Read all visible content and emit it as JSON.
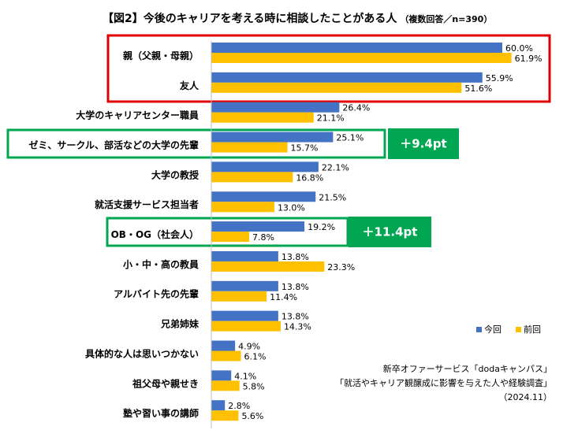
{
  "chart_data": {
    "type": "bar",
    "orientation": "horizontal",
    "title": "【図2】今後のキャリアを考える時に相談したことがある人",
    "subtitle": "（複数回答／n=390）",
    "categories": [
      "親（父親・母親）",
      "友人",
      "大学のキャリアセンター職員",
      "ゼミ、サークル、部活などの大学の先輩",
      "大学の教授",
      "就活支援サービス担当者",
      "OB・OG（社会人）",
      "小・中・高の教員",
      "アルバイト先の先輩",
      "兄弟姉妹",
      "具体的な人は思いつかない",
      "祖父母や親せき",
      "塾や習い事の講師"
    ],
    "series": [
      {
        "name": "今回",
        "color": "#4472C4",
        "values": [
          60.0,
          55.9,
          26.4,
          25.1,
          22.1,
          21.5,
          19.2,
          13.8,
          13.8,
          13.8,
          4.9,
          4.1,
          2.8
        ],
        "labels": [
          "60.0%",
          "55.9%",
          "26.4%",
          "25.1%",
          "22.1%",
          "21.5%",
          "19.2%",
          "13.8%",
          "13.8%",
          "13.8%",
          "4.9%",
          "4.1%",
          "2.8%"
        ]
      },
      {
        "name": "前回",
        "color": "#FFC000",
        "values": [
          61.9,
          51.6,
          21.1,
          15.7,
          16.8,
          13.0,
          7.8,
          23.3,
          11.4,
          14.3,
          6.1,
          5.8,
          5.6
        ],
        "labels": [
          "61.9%",
          "51.6%",
          "21.1%",
          "15.7%",
          "16.8%",
          "13.0%",
          "7.8%",
          "23.3%",
          "11.4%",
          "14.3%",
          "6.1%",
          "5.8%",
          "5.6%"
        ]
      }
    ],
    "xlim": [
      0,
      70
    ],
    "grid": false,
    "legend_position": "bottom-right",
    "highlight_colors": {
      "red_box": "#E00000",
      "green_box": "#00A651",
      "callout_fill": "#00A651"
    },
    "callouts": [
      {
        "category_index": 3,
        "text": "＋9.4pt"
      },
      {
        "category_index": 6,
        "text": "＋11.4pt"
      }
    ],
    "source": [
      "新卒オファーサービス「dodaキャンパス」",
      "「就活やキャリア観醸成に影響を与えた人や経験調査」",
      "（2024.11）"
    ]
  }
}
